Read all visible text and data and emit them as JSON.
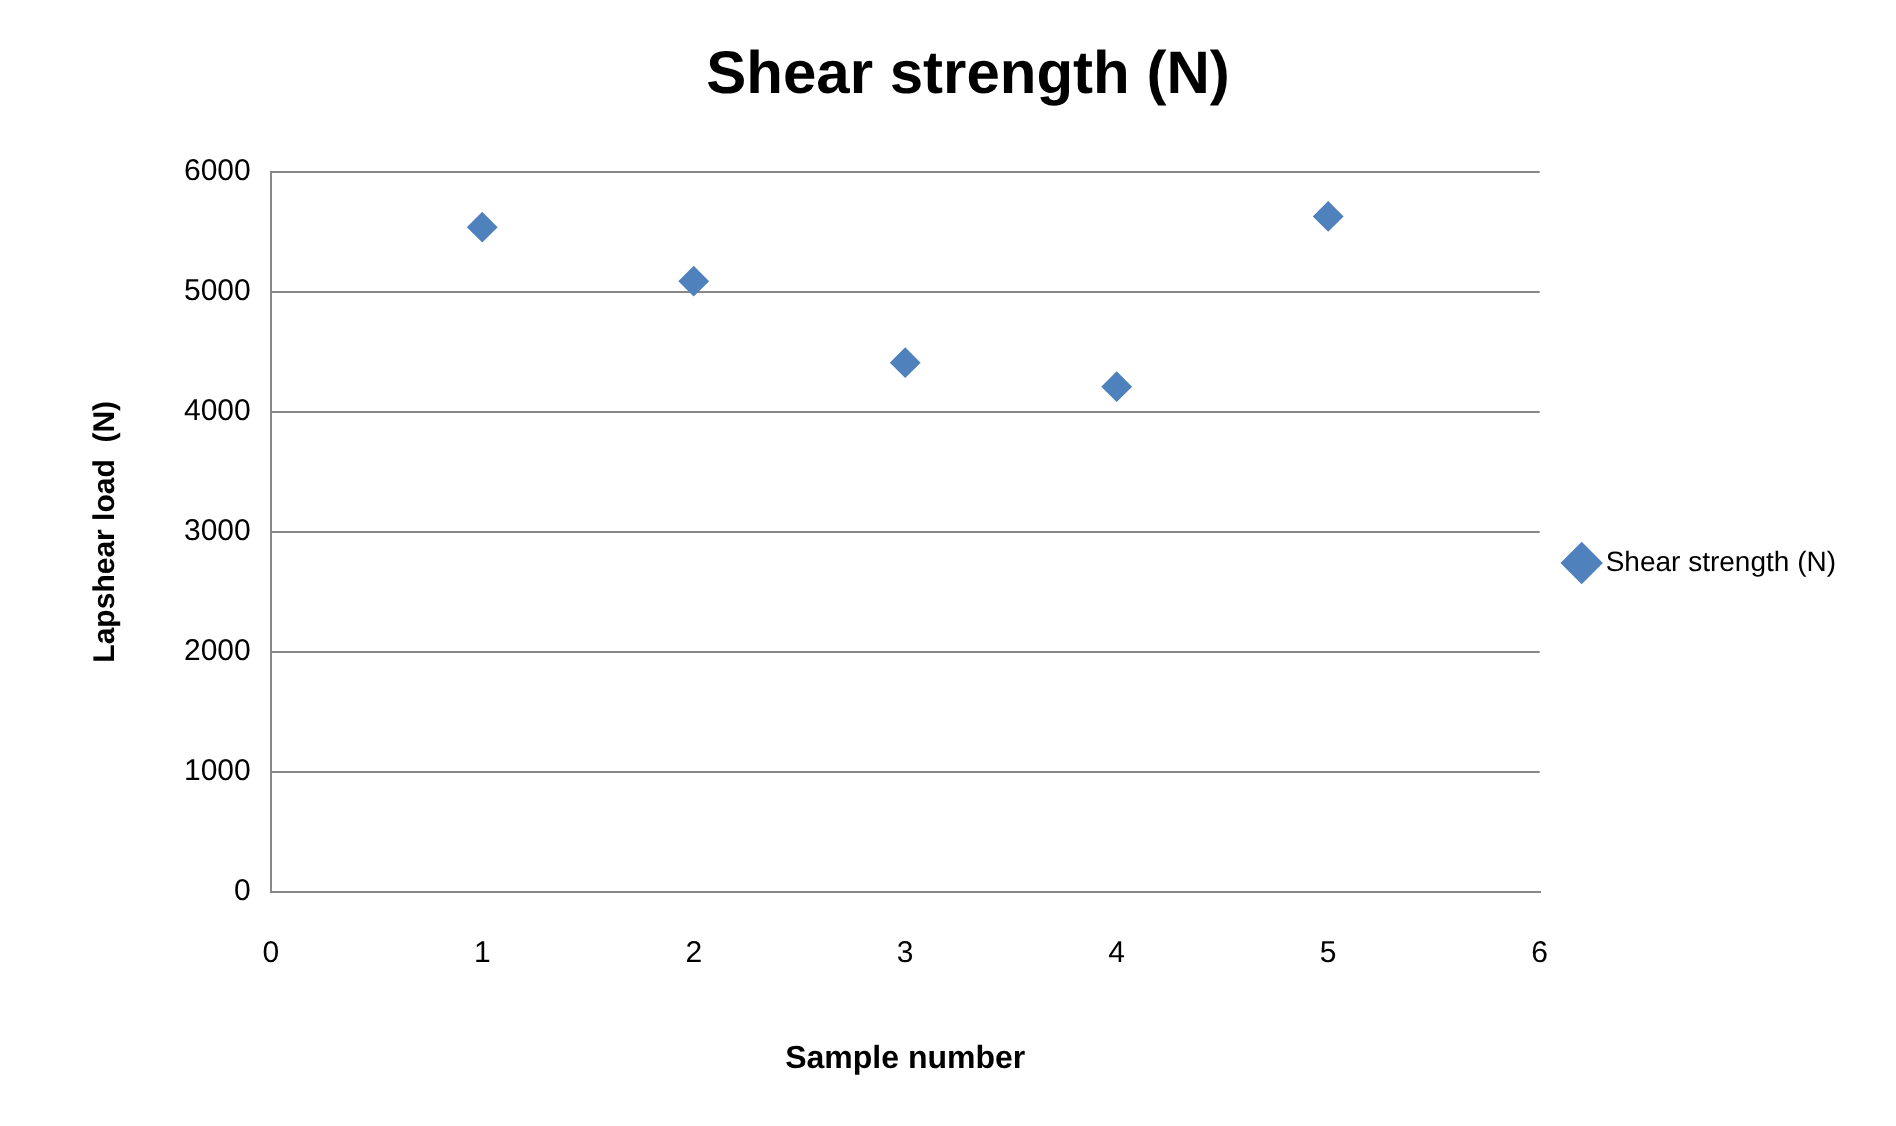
{
  "chart_data": {
    "type": "scatter",
    "title": "Shear strength (N)",
    "xlabel": "Sample number",
    "ylabel": "Lapshear load  (N)",
    "x": [
      1,
      2,
      3,
      4,
      5
    ],
    "series": [
      {
        "name": "Shear strength (N)",
        "color": "#4f81bd",
        "values": [
          5540,
          5090,
          4410,
          4210,
          5630
        ]
      }
    ],
    "xlim": [
      0,
      6
    ],
    "xticks": [
      0,
      1,
      2,
      3,
      4,
      5,
      6
    ],
    "ylim": [
      0,
      6000
    ],
    "yticks": [
      0,
      1000,
      2000,
      3000,
      4000,
      5000,
      6000
    ],
    "grid": "y",
    "legend": "right",
    "marker": "diamond"
  }
}
